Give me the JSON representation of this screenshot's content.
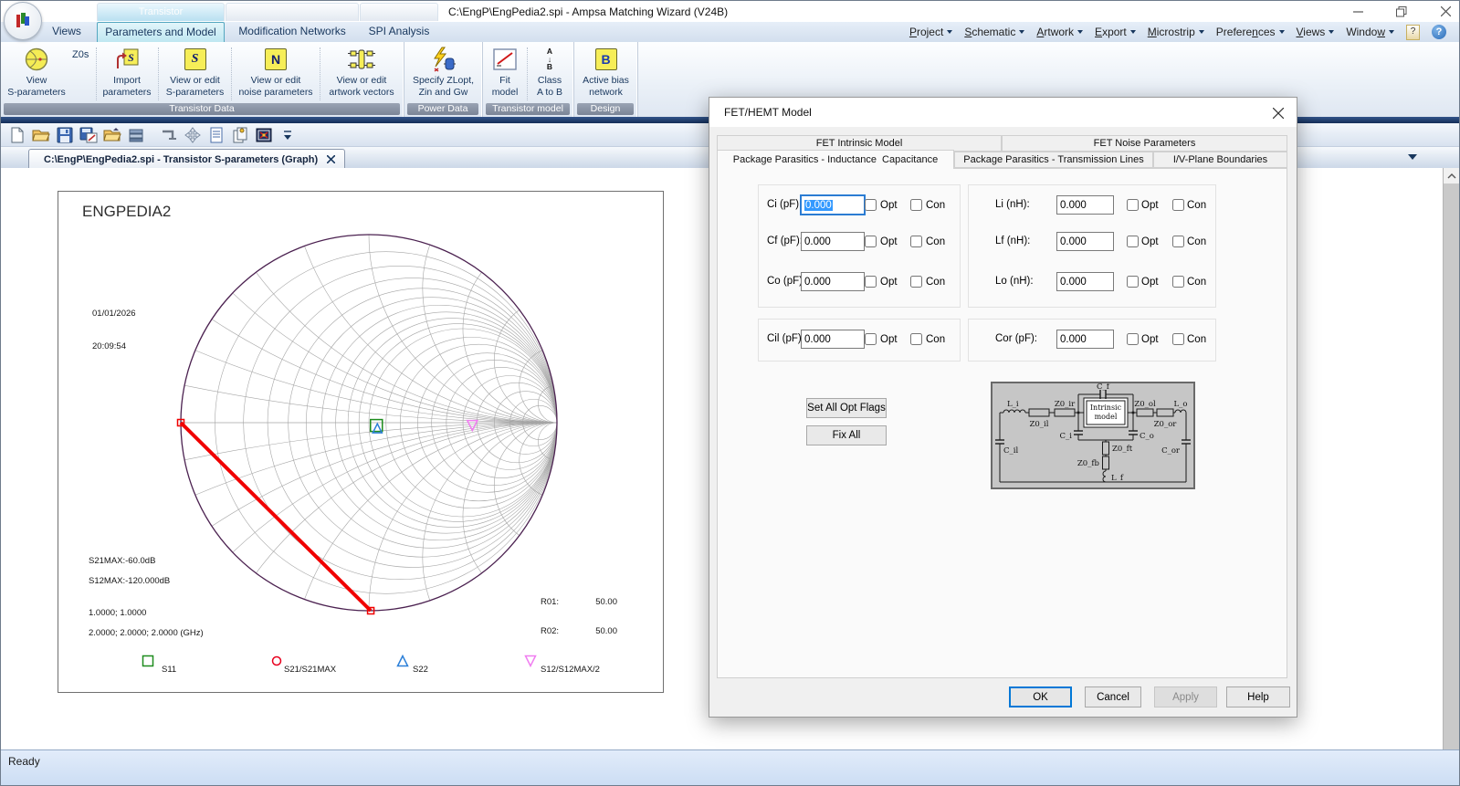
{
  "titlebar": {
    "title": "C:\\EngP\\EngPedia2.spi - Ampsa Matching Wizard (V24B)",
    "context_group": "Transistor"
  },
  "ribbon_tabs": [
    {
      "label": "Views"
    },
    {
      "label": "Parameters and Model"
    },
    {
      "label": "Modification Networks"
    },
    {
      "label": "SPI Analysis"
    }
  ],
  "menus": [
    {
      "pre": "",
      "key": "P",
      "post": "roject"
    },
    {
      "pre": "",
      "key": "S",
      "post": "chematic"
    },
    {
      "pre": "",
      "key": "A",
      "post": "rtwork"
    },
    {
      "pre": "",
      "key": "E",
      "post": "xport"
    },
    {
      "pre": "",
      "key": "M",
      "post": "icrostrip"
    },
    {
      "pre": "Prefere",
      "key": "n",
      "post": "ces"
    },
    {
      "pre": "",
      "key": "V",
      "post": "iews"
    },
    {
      "pre": "Windo",
      "key": "w",
      "post": ""
    }
  ],
  "help_glyph": "?",
  "ribbon": {
    "z0s": "Z0s",
    "groups": [
      {
        "caption": "Transistor Data",
        "buttons": [
          {
            "label": "View\nS-parameters"
          },
          {
            "label": "Import\nparameters",
            "icon_text": "S"
          },
          {
            "label": "View or edit\nS-parameters",
            "icon_text": "S"
          },
          {
            "label": "View or edit\nnoise parameters",
            "icon_text": "N"
          },
          {
            "label": "View or edit\nartwork vectors"
          }
        ]
      },
      {
        "caption": "Power Data",
        "buttons": [
          {
            "label": "Specify ZLopt,\nZin and Gw"
          }
        ]
      },
      {
        "caption": "Transistor model",
        "buttons": [
          {
            "label": "Fit\nmodel"
          },
          {
            "label": "Class\nA to B",
            "icon_text": "A\n↓\nB"
          }
        ]
      },
      {
        "caption": "Design",
        "buttons": [
          {
            "label": "Active bias\nnetwork",
            "icon_text": "B"
          }
        ]
      }
    ]
  },
  "doc_tab": {
    "label": "C:\\EngP\\EngPedia2.spi - Transistor S-parameters (Graph)"
  },
  "chart_data": {
    "type": "smith",
    "title": "ENGPEDIA2",
    "date": "01/01/2026",
    "time": "20:09:54",
    "annotations": [
      "S21MAX:-60.0dB",
      "S12MAX:-120.000dB",
      "1.0000; 1.0000",
      "2.0000; 2.0000; 2.0000 (GHz)"
    ],
    "r01_label": "R01:",
    "r01_value": "50.00",
    "r02_label": "R02:",
    "r02_value": "50.00",
    "grid": {
      "r": [
        0.1,
        0.2,
        0.3,
        0.4,
        0.5,
        0.6,
        0.7,
        0.8,
        0.9,
        1,
        1.2,
        1.4,
        1.7,
        2,
        2.4,
        3,
        3.7,
        5,
        7,
        10
      ],
      "x": [
        0.1,
        0.2,
        0.3,
        0.4,
        0.5,
        0.7,
        1,
        1.4,
        2,
        3,
        5,
        10
      ]
    },
    "style": {
      "outer": "#4b2150",
      "grid": "#a5a5a5",
      "trace": "#f00000"
    },
    "trace": {
      "from": [
        -1.0,
        0.0
      ],
      "to": [
        0.01,
        -1.0
      ]
    },
    "markers": [
      {
        "name": "s11-marker",
        "shape": "square",
        "color": "#1e8c1e",
        "gamma": [
          0.04,
          -0.015
        ],
        "size": 13
      },
      {
        "name": "s22-marker",
        "shape": "triangle-up",
        "color": "#2b7fd8",
        "gamma": [
          0.045,
          -0.03
        ],
        "size": 10
      },
      {
        "name": "s12-marker",
        "shape": "triangle-down",
        "color": "#f07df0",
        "gamma": [
          0.55,
          -0.015
        ],
        "size": 11
      },
      {
        "name": "trace-start-marker",
        "shape": "square",
        "color": "#f00000",
        "gamma": [
          -1.0,
          0.0
        ],
        "size": 7
      },
      {
        "name": "trace-end-marker",
        "shape": "square",
        "color": "#f00000",
        "gamma": [
          0.01,
          -1.0
        ],
        "size": 7
      }
    ],
    "legend": [
      {
        "label": "S11",
        "shape": "square",
        "color": "#1e8c1e"
      },
      {
        "label": "S21/S21MAX",
        "shape": "circle",
        "color": "#e8001e"
      },
      {
        "label": "S22",
        "shape": "triangle-up",
        "color": "#2b7fd8"
      },
      {
        "label": "S12/S12MAX/2",
        "shape": "triangle-down",
        "color": "#f07df0"
      }
    ]
  },
  "dialog": {
    "title": "FET/HEMT Model",
    "tabs_row1": [
      {
        "label": "FET Intrinsic Model"
      },
      {
        "label": "FET Noise Parameters"
      }
    ],
    "tabs_row2": [
      {
        "label": "Package Parasitics - Inductance  Capacitance"
      },
      {
        "label": "Package Parasitics - Transmission Lines"
      },
      {
        "label": "I/V-Plane Boundaries"
      }
    ],
    "opt_label": "Opt",
    "con_label": "Con",
    "cap_fields": [
      {
        "label": "Ci (pF):",
        "value": "0.000"
      },
      {
        "label": "Cf (pF):",
        "value": "0.000"
      },
      {
        "label": "Co (pF):",
        "value": "0.000"
      }
    ],
    "ind_fields": [
      {
        "label": "Li (nH):",
        "value": "0.000"
      },
      {
        "label": "Lf (nH):",
        "value": "0.000"
      },
      {
        "label": "Lo (nH):",
        "value": "0.000"
      }
    ],
    "extra_fields": [
      {
        "label": "Cil (pF):",
        "value": "0.000"
      },
      {
        "label": "Cor (pF):",
        "value": "0.000"
      }
    ],
    "buttons": {
      "set_all_opt": "Set All Opt Flags",
      "fix_all": "Fix All",
      "ok": "OK",
      "cancel": "Cancel",
      "apply": "Apply",
      "help": "Help"
    },
    "circuit": {
      "li": "L_i",
      "z0il": "Z0_il",
      "z0ir": "Z0_ir",
      "cf": "C_f",
      "z0ol": "Z0_ol",
      "z0or": "Z0_or",
      "lo": "L_o",
      "intrinsic1": "Intrinsic",
      "intrinsic2": "model",
      "ci": "C_i",
      "co": "C_o",
      "cil": "C_il",
      "cor": "C_or",
      "z0ft": "Z0_ft",
      "z0fb": "Z0_fb",
      "lf": "L_f"
    }
  },
  "status": {
    "ready": "Ready"
  }
}
